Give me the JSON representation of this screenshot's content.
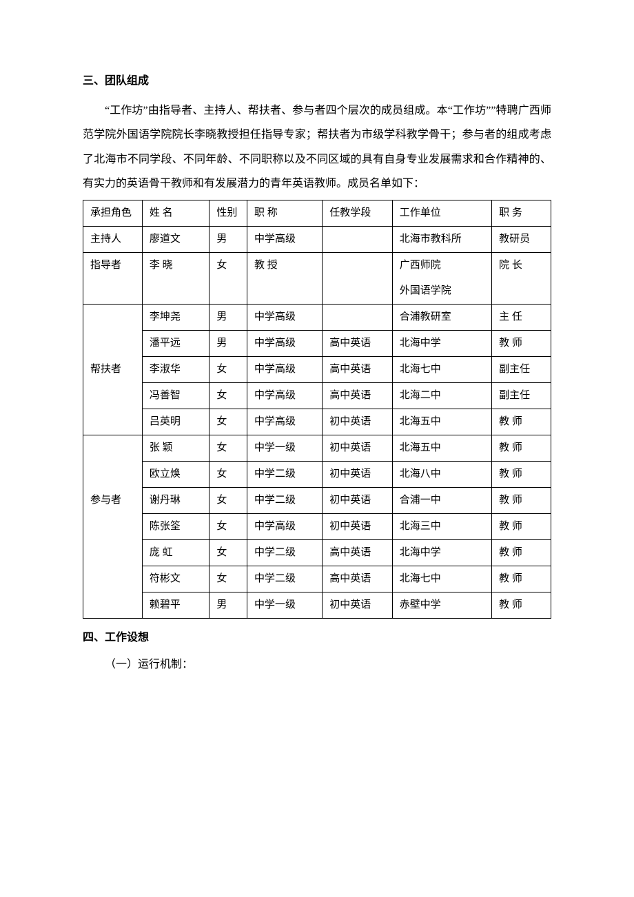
{
  "section3": {
    "heading": "三、团队组成",
    "paragraph": "“工作坊”由指导者、主持人、帮扶者、参与者四个层次的成员组成。本“工作坊””特聘广西师范学院外国语学院院长李晓教授担任指导专家；帮扶者为市级学科教学骨干；参与者的组成考虑了北海市不同学段、不同年龄、不同职称以及不同区域的具有自身专业发展需求和合作精神的、有实力的英语骨干教师和有发展潜力的青年英语教师。成员名单如下："
  },
  "table": {
    "headers": {
      "role": "承担角色",
      "name": "姓  名",
      "gender": "性别",
      "title": "职  称",
      "stage": "任教学段",
      "unit": "工作单位",
      "duty": "职  务"
    },
    "r1": {
      "role": "主持人",
      "name": "廖道文",
      "gender": "男",
      "title": "中学高级",
      "stage": "",
      "unit": "北海市教科所",
      "duty": "教研员"
    },
    "r2a": {
      "role": "指导者",
      "name": "李  晓",
      "gender": "女",
      "title": "教  授",
      "stage": "",
      "unit": "广西师院",
      "duty": "院  长"
    },
    "r2b": {
      "unit": "外国语学院"
    },
    "g1": {
      "role": "帮扶者",
      "m1": {
        "name": "李坤尧",
        "gender": "男",
        "title": "中学高级",
        "stage": "",
        "unit": "合浦教研室",
        "duty": "主  任"
      },
      "m2": {
        "name": "潘平远",
        "gender": "男",
        "title": "中学高级",
        "stage": "高中英语",
        "unit": "北海中学",
        "duty": "教  师"
      },
      "m3": {
        "name": "李淑华",
        "gender": "女",
        "title": "中学高级",
        "stage": "高中英语",
        "unit": "北海七中",
        "duty": "副主任"
      },
      "m4": {
        "name": "冯善智",
        "gender": "女",
        "title": "中学高级",
        "stage": "高中英语",
        "unit": "北海二中",
        "duty": "副主任"
      },
      "m5": {
        "name": "吕英明",
        "gender": "女",
        "title": "中学高级",
        "stage": "初中英语",
        "unit": "北海五中",
        "duty": "教  师"
      }
    },
    "g2": {
      "role": "参与者",
      "m1": {
        "name": "张  颖",
        "gender": "女",
        "title": "中学一级",
        "stage": "初中英语",
        "unit": "北海五中",
        "duty": "教  师"
      },
      "m2": {
        "name": "欧立焕",
        "gender": "女",
        "title": "中学二级",
        "stage": "初中英语",
        "unit": "北海八中",
        "duty": "教  师"
      },
      "m3": {
        "name": "谢丹琳",
        "gender": "女",
        "title": "中学二级",
        "stage": "初中英语",
        "unit": "合浦一中",
        "duty": "教  师"
      },
      "m4": {
        "name": "陈张筌",
        "gender": "女",
        "title": "中学高级",
        "stage": "初中英语",
        "unit": "北海三中",
        "duty": "教  师"
      },
      "m5": {
        "name": "庞  虹",
        "gender": "女",
        "title": "中学二级",
        "stage": "高中英语",
        "unit": "北海中学",
        "duty": "教  师"
      },
      "m6": {
        "name": "符彬文",
        "gender": "女",
        "title": "中学二级",
        "stage": "高中英语",
        "unit": "北海七中",
        "duty": "教  师"
      },
      "m7": {
        "name": "赖碧平",
        "gender": "男",
        "title": "中学一级",
        "stage": "初中英语",
        "unit": "赤壁中学",
        "duty": "教  师"
      }
    }
  },
  "section4": {
    "heading": "四、工作设想",
    "sub1": "（一）运行机制："
  }
}
